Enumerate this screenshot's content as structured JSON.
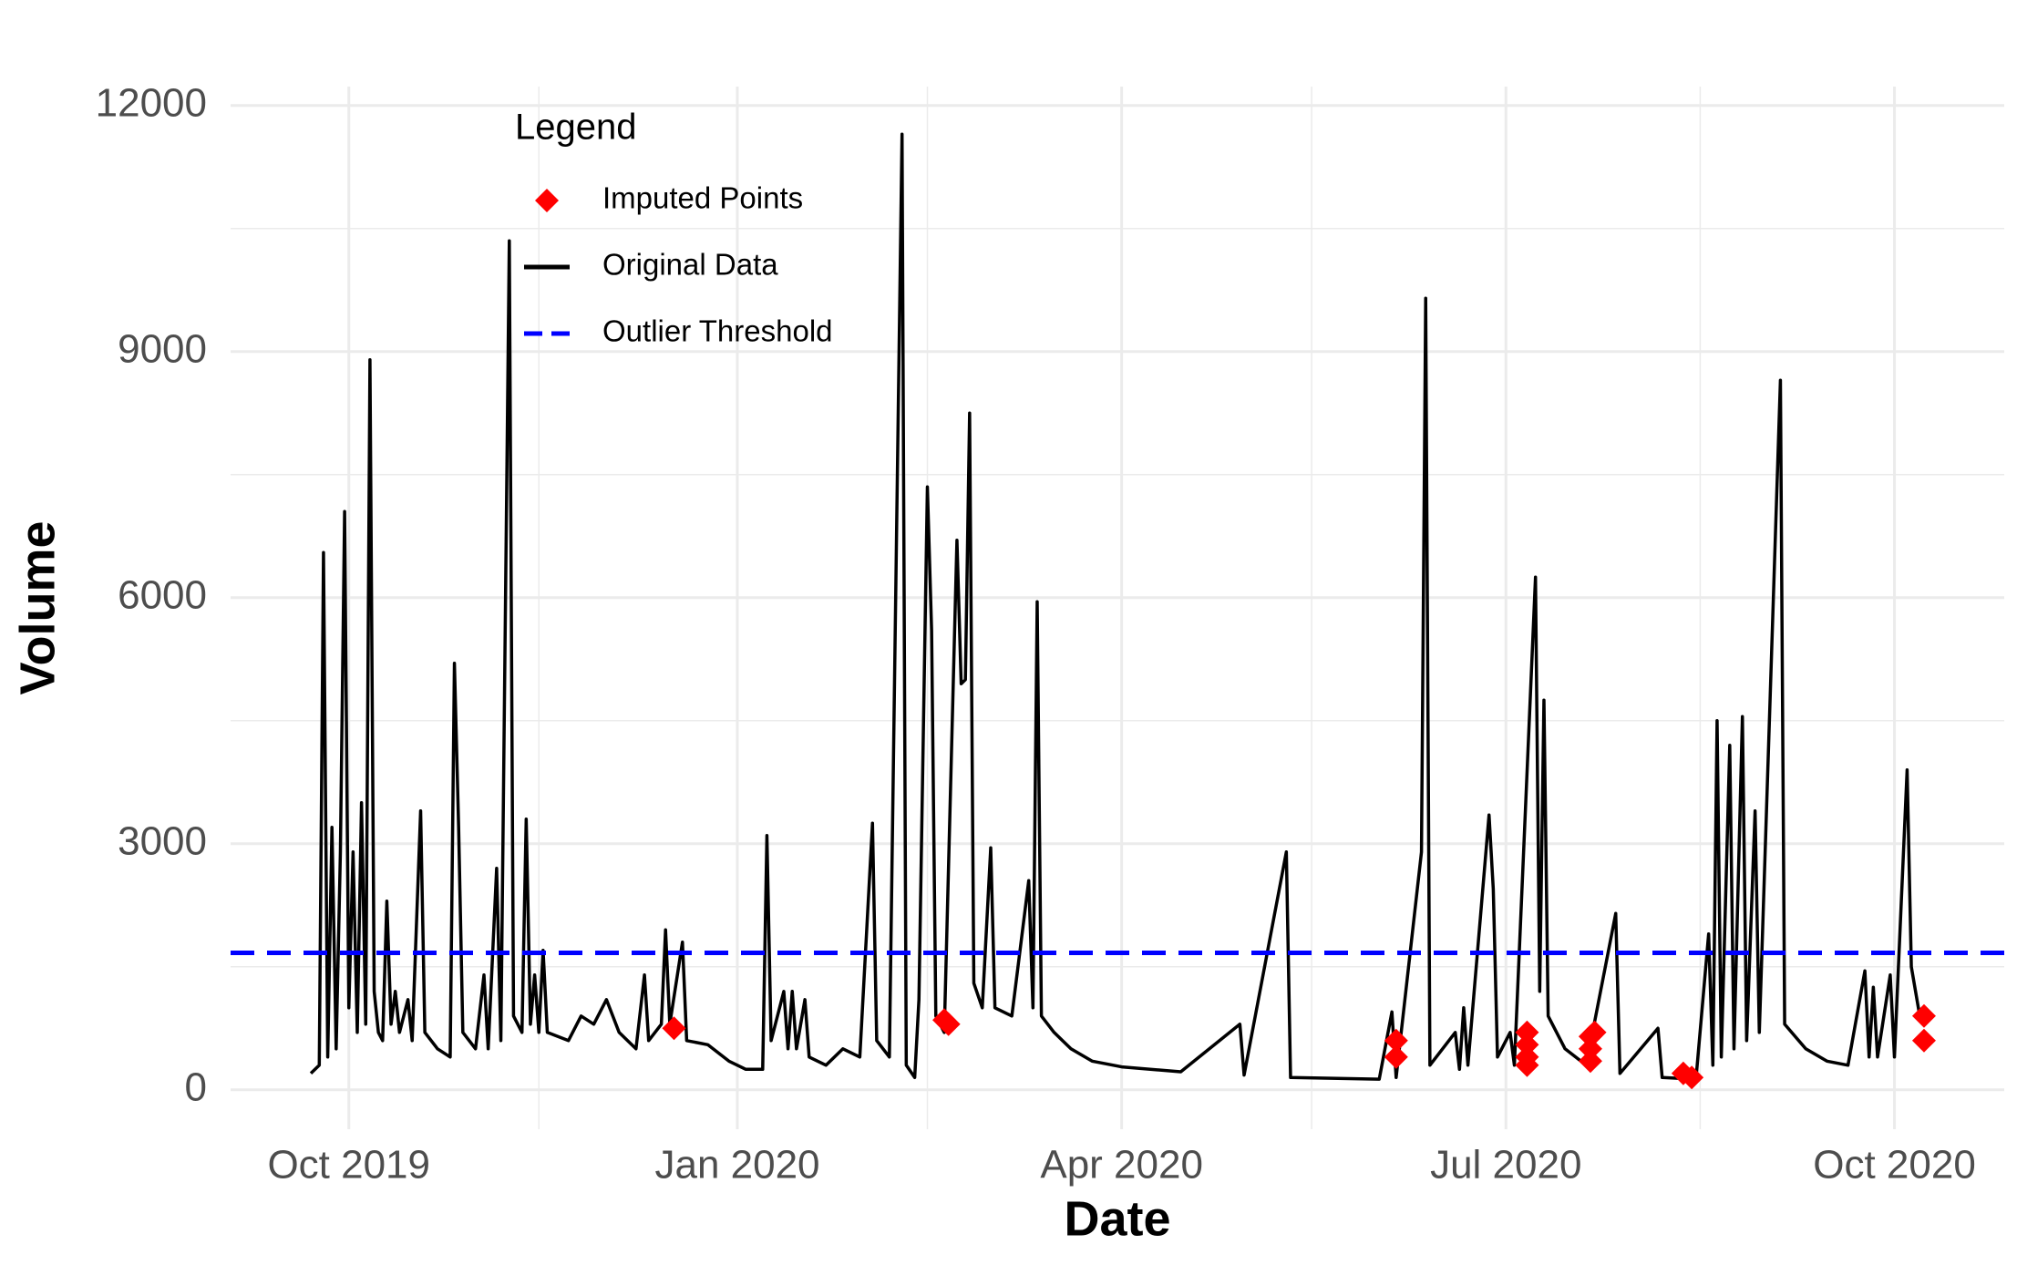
{
  "chart_data": {
    "type": "line",
    "x_label": "Date",
    "y_label": "Volume",
    "legend_title": "Legend",
    "legend_position": "top-left",
    "grid": true,
    "xlim": [
      "2019-09-03",
      "2020-10-27"
    ],
    "ylim": [
      -480,
      12230
    ],
    "xticks": [
      {
        "value": "2019-10-01",
        "label": "Oct 2019"
      },
      {
        "value": "2020-01-01",
        "label": "Jan 2020"
      },
      {
        "value": "2020-04-01",
        "label": "Apr 2020"
      },
      {
        "value": "2020-07-01",
        "label": "Jul 2020"
      },
      {
        "value": "2020-10-01",
        "label": "Oct 2020"
      }
    ],
    "x_minor_ticks": [
      "2019-11-15",
      "2020-02-15",
      "2020-05-16",
      "2020-08-16"
    ],
    "yticks": [
      0,
      3000,
      6000,
      9000,
      12000
    ],
    "y_minor_ticks": [
      1500,
      4500,
      7500,
      10500
    ],
    "series": [
      {
        "name": "Imputed Points",
        "type": "scatter",
        "marker": "diamond",
        "color": "#ff0000",
        "x": [
          "2019-12-17",
          "2020-02-19",
          "2020-02-20",
          "2020-06-05",
          "2020-06-05",
          "2020-07-06",
          "2020-07-06",
          "2020-07-06",
          "2020-07-06",
          "2020-07-21",
          "2020-07-21",
          "2020-07-21",
          "2020-07-22",
          "2020-08-12",
          "2020-08-14",
          "2020-10-08",
          "2020-10-08"
        ],
        "values": [
          750,
          850,
          800,
          600,
          400,
          700,
          550,
          400,
          300,
          650,
          500,
          350,
          700,
          200,
          150,
          900,
          600
        ]
      },
      {
        "name": "Original Data",
        "type": "line",
        "color": "#000000",
        "x": [
          "2019-09-22",
          "2019-09-24",
          "2019-09-25",
          "2019-09-26",
          "2019-09-27",
          "2019-09-28",
          "2019-09-29",
          "2019-09-30",
          "2019-10-01",
          "2019-10-02",
          "2019-10-03",
          "2019-10-04",
          "2019-10-05",
          "2019-10-06",
          "2019-10-07",
          "2019-10-08",
          "2019-10-09",
          "2019-10-10",
          "2019-10-11",
          "2019-10-12",
          "2019-10-13",
          "2019-10-15",
          "2019-10-16",
          "2019-10-18",
          "2019-10-19",
          "2019-10-22",
          "2019-10-25",
          "2019-10-26",
          "2019-10-27",
          "2019-10-28",
          "2019-10-31",
          "2019-11-02",
          "2019-11-03",
          "2019-11-05",
          "2019-11-06",
          "2019-11-08",
          "2019-11-09",
          "2019-11-11",
          "2019-11-12",
          "2019-11-13",
          "2019-11-14",
          "2019-11-15",
          "2019-11-16",
          "2019-11-17",
          "2019-11-22",
          "2019-11-25",
          "2019-11-28",
          "2019-12-01",
          "2019-12-04",
          "2019-12-08",
          "2019-12-10",
          "2019-12-11",
          "2019-12-14",
          "2019-12-15",
          "2019-12-16",
          "2019-12-19",
          "2019-12-20",
          "2019-12-25",
          "2019-12-30",
          "2020-01-03",
          "2020-01-07",
          "2020-01-08",
          "2020-01-09",
          "2020-01-12",
          "2020-01-13",
          "2020-01-14",
          "2020-01-15",
          "2020-01-17",
          "2020-01-18",
          "2020-01-22",
          "2020-01-26",
          "2020-01-30",
          "2020-02-02",
          "2020-02-03",
          "2020-02-06",
          "2020-02-09",
          "2020-02-10",
          "2020-02-12",
          "2020-02-13",
          "2020-02-15",
          "2020-02-16",
          "2020-02-17",
          "2020-02-19",
          "2020-02-22",
          "2020-02-23",
          "2020-02-24",
          "2020-02-25",
          "2020-02-26",
          "2020-02-28",
          "2020-03-01",
          "2020-03-02",
          "2020-03-06",
          "2020-03-10",
          "2020-03-11",
          "2020-03-12",
          "2020-03-13",
          "2020-03-16",
          "2020-03-20",
          "2020-03-25",
          "2020-04-01",
          "2020-04-15",
          "2020-04-29",
          "2020-04-30",
          "2020-05-10",
          "2020-05-11",
          "2020-06-01",
          "2020-06-04",
          "2020-06-05",
          "2020-06-11",
          "2020-06-12",
          "2020-06-13",
          "2020-06-19",
          "2020-06-20",
          "2020-06-21",
          "2020-06-22",
          "2020-06-27",
          "2020-06-28",
          "2020-06-29",
          "2020-07-02",
          "2020-07-03",
          "2020-07-08",
          "2020-07-09",
          "2020-07-10",
          "2020-07-11",
          "2020-07-15",
          "2020-07-20",
          "2020-07-27",
          "2020-07-28",
          "2020-08-06",
          "2020-08-07",
          "2020-08-15",
          "2020-08-18",
          "2020-08-19",
          "2020-08-20",
          "2020-08-21",
          "2020-08-23",
          "2020-08-24",
          "2020-08-26",
          "2020-08-27",
          "2020-08-29",
          "2020-08-30",
          "2020-09-04",
          "2020-09-05",
          "2020-09-10",
          "2020-09-15",
          "2020-09-20",
          "2020-09-24",
          "2020-09-25",
          "2020-09-26",
          "2020-09-27",
          "2020-09-30",
          "2020-10-01",
          "2020-10-04",
          "2020-10-05",
          "2020-10-07",
          "2020-10-08"
        ],
        "values": [
          200,
          300,
          6550,
          400,
          3200,
          500,
          2900,
          7050,
          1000,
          2900,
          700,
          3500,
          800,
          8900,
          1200,
          700,
          600,
          2300,
          800,
          1200,
          700,
          1100,
          600,
          3400,
          700,
          500,
          400,
          5200,
          3200,
          700,
          500,
          1400,
          500,
          2700,
          600,
          10350,
          900,
          700,
          3300,
          800,
          1400,
          700,
          1700,
          700,
          600,
          900,
          800,
          1100,
          700,
          500,
          1400,
          600,
          800,
          1950,
          800,
          1800,
          600,
          550,
          350,
          250,
          250,
          3100,
          600,
          1200,
          500,
          1200,
          500,
          1100,
          400,
          300,
          500,
          400,
          3250,
          600,
          400,
          11650,
          300,
          150,
          1100,
          7350,
          5600,
          900,
          700,
          6700,
          4950,
          5000,
          8250,
          1300,
          1000,
          2950,
          1000,
          900,
          2550,
          1000,
          5950,
          900,
          700,
          500,
          350,
          280,
          220,
          800,
          180,
          2900,
          150,
          130,
          950,
          150,
          2900,
          9650,
          300,
          700,
          250,
          1000,
          300,
          3350,
          2450,
          400,
          700,
          300,
          6250,
          1200,
          4750,
          900,
          500,
          300,
          2150,
          200,
          750,
          150,
          130,
          1900,
          300,
          4500,
          400,
          4200,
          500,
          4550,
          600,
          3400,
          700,
          8650,
          800,
          500,
          350,
          300,
          1450,
          400,
          1250,
          400,
          1400,
          400,
          3900,
          1500,
          900,
          800
        ]
      }
    ],
    "threshold": {
      "name": "Outlier Threshold",
      "value": 1670,
      "color": "#0000ff",
      "dash": true
    }
  }
}
